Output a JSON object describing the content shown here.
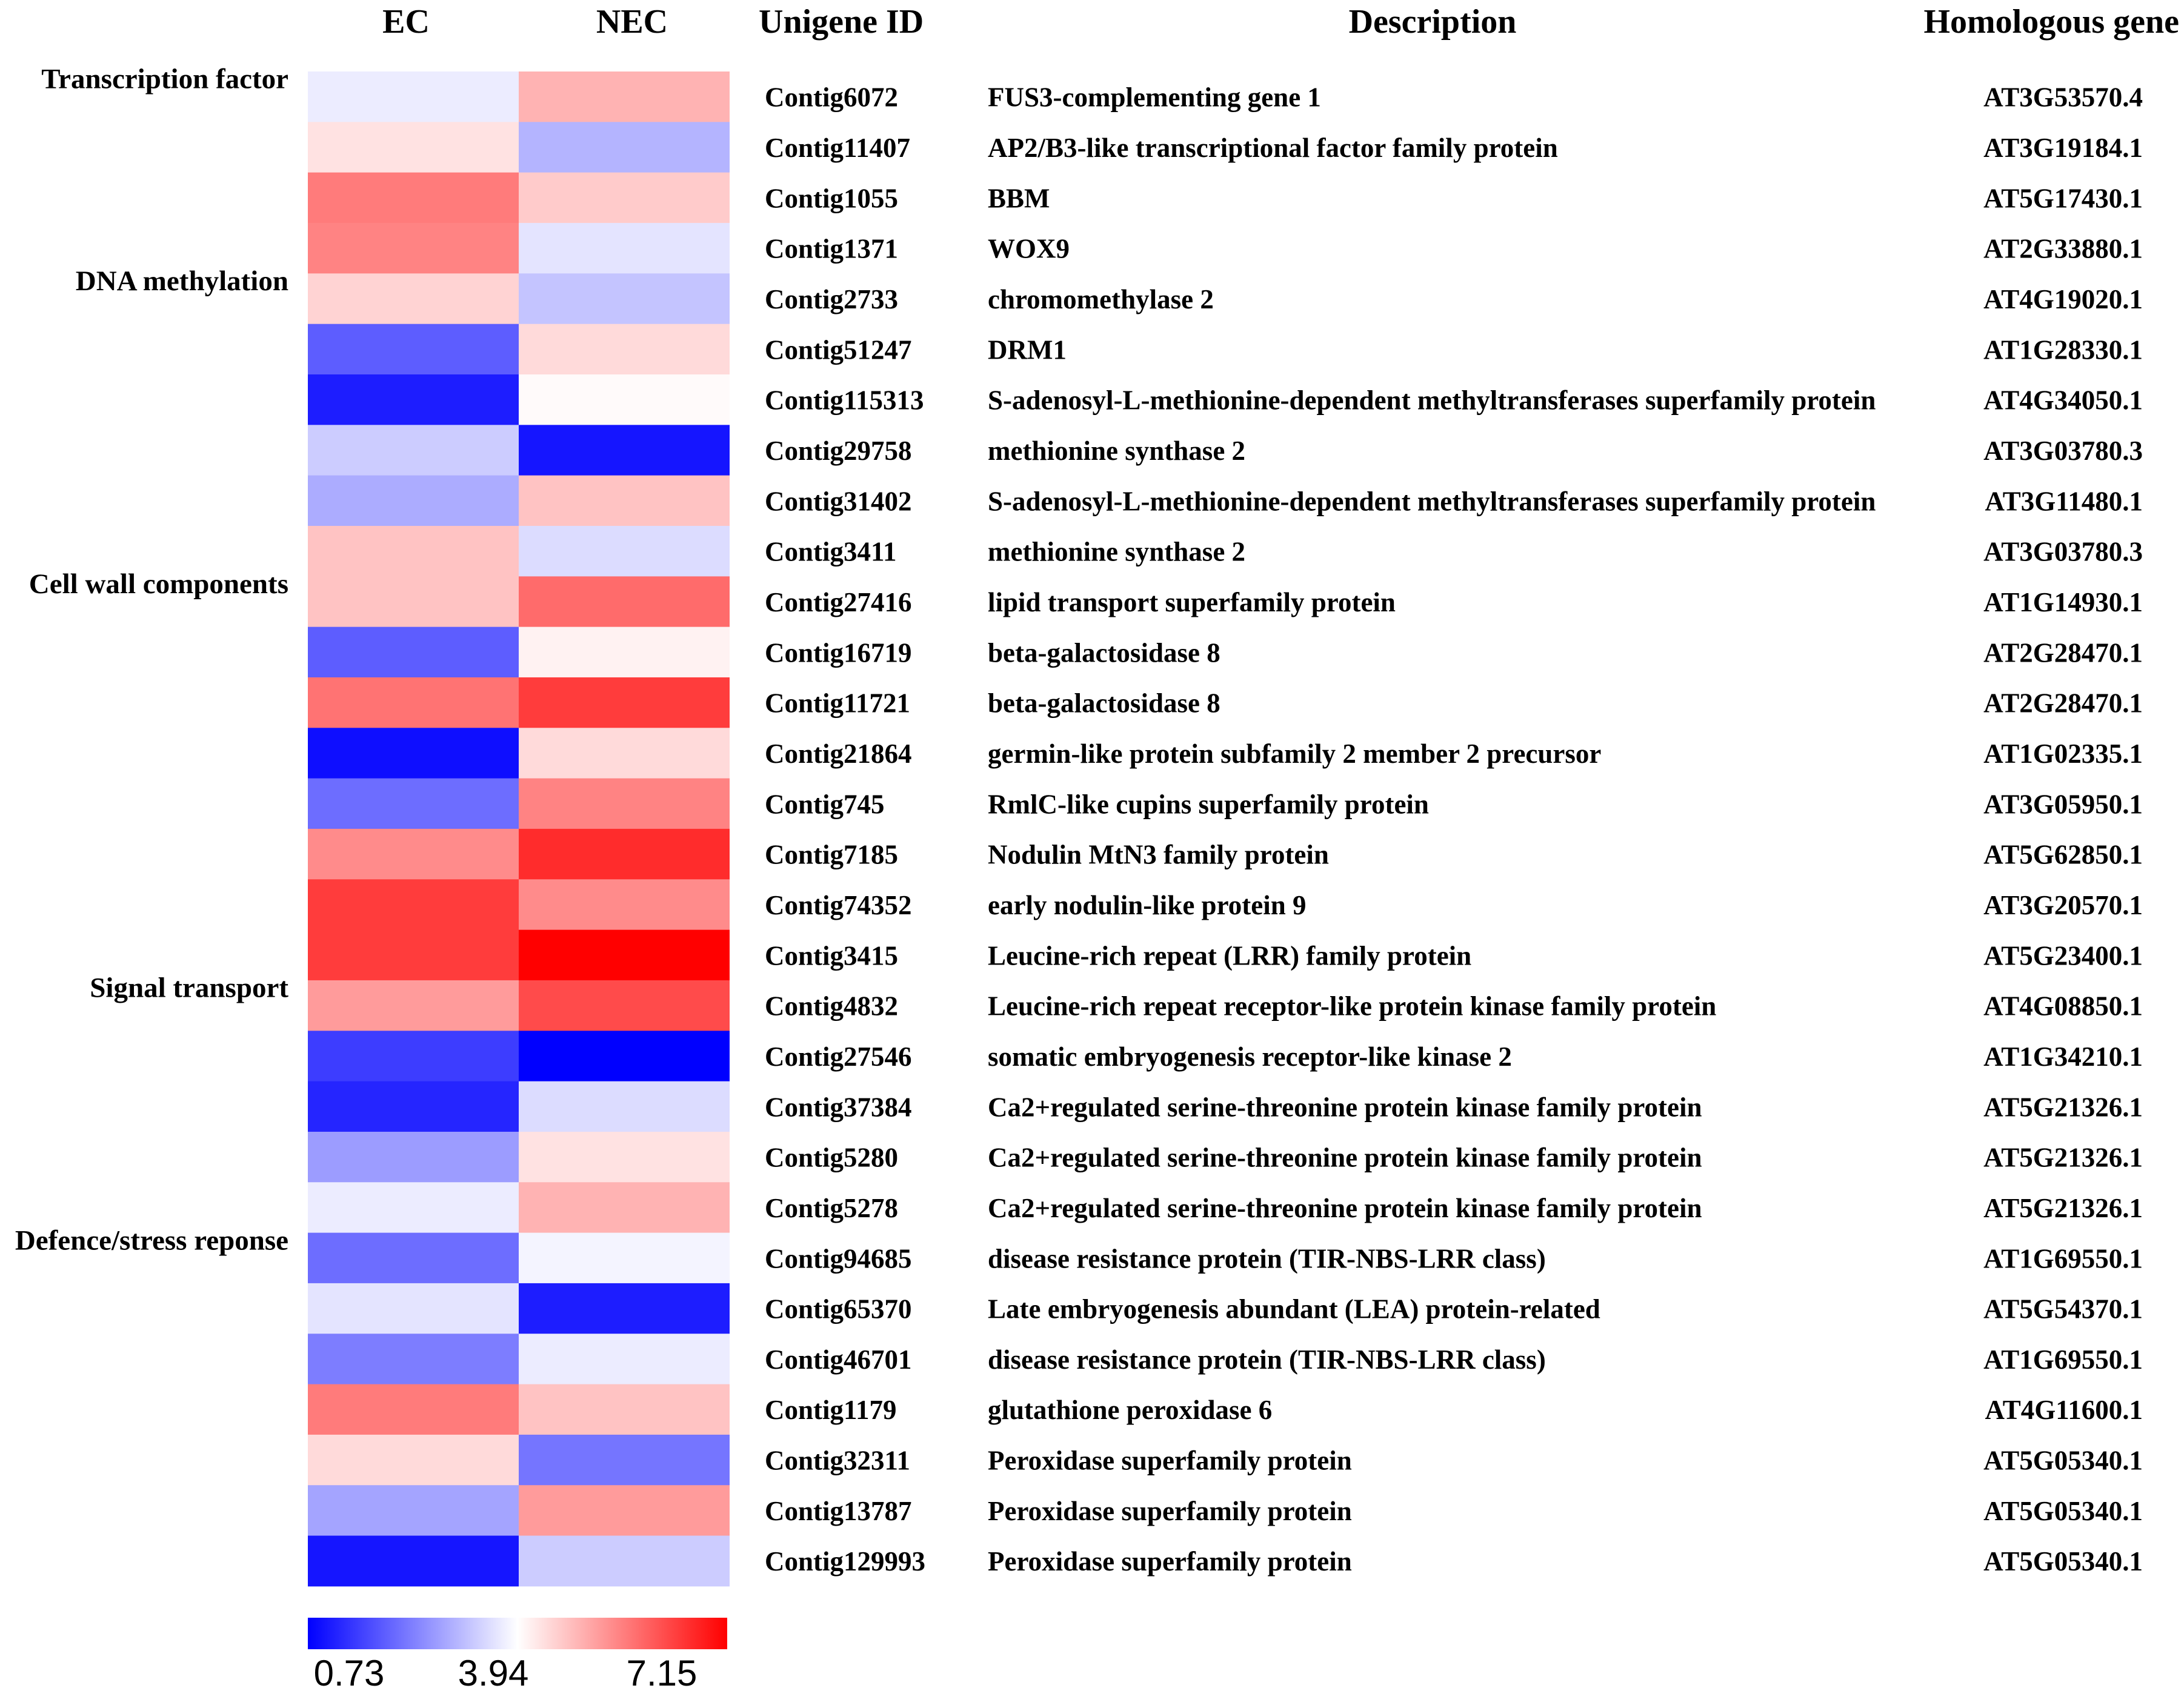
{
  "chart_data": {
    "type": "heatmap",
    "columns": [
      "EC",
      "NEC"
    ],
    "headers": {
      "unigene": "Unigene ID",
      "description": "Description",
      "homologous": "Homologous gene"
    },
    "categories": [
      {
        "label": "Transcription factor",
        "row": 0
      },
      {
        "label": "DNA methylation",
        "row": 4
      },
      {
        "label": "Cell wall components",
        "row": 10
      },
      {
        "label": "Signal transport",
        "row": 18
      },
      {
        "label": "Defence/stress reponse",
        "row": 23
      }
    ],
    "rows": [
      {
        "id": "Contig6072",
        "description": "FUS3-complementing gene 1",
        "gene": "AT3G53570.4",
        "values": [
          3.7,
          4.9
        ]
      },
      {
        "id": "Contig11407",
        "description": "AP2/B3-like transcriptional factor family protein",
        "gene": "AT3G19184.1",
        "values": [
          4.3,
          3.0
        ]
      },
      {
        "id": "Contig1055",
        "description": "BBM",
        "gene": "AT5G17430.1",
        "values": [
          5.6,
          4.6
        ]
      },
      {
        "id": "Contig1371",
        "description": "WOX9",
        "gene": "AT2G33880.1",
        "values": [
          5.5,
          3.6
        ]
      },
      {
        "id": "Contig2733",
        "description": "chromomethylase 2",
        "gene": "AT4G19020.1",
        "values": [
          4.5,
          3.2
        ]
      },
      {
        "id": "Contig51247",
        "description": "DRM1",
        "gene": "AT1G28330.1",
        "values": [
          1.9,
          4.4
        ]
      },
      {
        "id": "Contig115313",
        "description": "S-adenosyl-L-methionine-dependent methyltransferases superfamily protein",
        "gene": "AT4G34050.1",
        "values": [
          1.1,
          4.0
        ]
      },
      {
        "id": "Contig29758",
        "description": "methionine synthase 2",
        "gene": "AT3G03780.3",
        "values": [
          3.3,
          1.0
        ]
      },
      {
        "id": "Contig31402",
        "description": "S-adenosyl-L-methionine-dependent methyltransferases superfamily protein",
        "gene": "AT3G11480.1",
        "values": [
          2.9,
          4.7
        ]
      },
      {
        "id": "Contig3411",
        "description": "methionine synthase 2",
        "gene": "AT3G03780.3",
        "values": [
          4.7,
          3.5
        ]
      },
      {
        "id": "Contig27416",
        "description": "lipid transport superfamily protein",
        "gene": "AT1G14930.1",
        "values": [
          4.7,
          5.8
        ]
      },
      {
        "id": "Contig16719",
        "description": "beta-galactosidase 8",
        "gene": "AT2G28470.1",
        "values": [
          1.9,
          4.1
        ]
      },
      {
        "id": "Contig11721",
        "description": "beta-galactosidase 8",
        "gene": "AT2G28470.1",
        "values": [
          5.7,
          6.4
        ]
      },
      {
        "id": "Contig21864",
        "description": "germin-like protein subfamily 2 member 2 precursor",
        "gene": "AT1G02335.1",
        "values": [
          0.9,
          4.4
        ]
      },
      {
        "id": "Contig745",
        "description": "RmlC-like cupins superfamily protein",
        "gene": "AT3G05950.1",
        "values": [
          2.1,
          5.5
        ]
      },
      {
        "id": "Contig7185",
        "description": "Nodulin MtN3 family protein",
        "gene": "AT5G62850.1",
        "values": [
          5.4,
          6.6
        ]
      },
      {
        "id": "Contig74352",
        "description": "early nodulin-like protein 9",
        "gene": "AT3G20570.1",
        "values": [
          6.4,
          5.4
        ]
      },
      {
        "id": "Contig3415",
        "description": "Leucine-rich repeat (LRR) family protein",
        "gene": "AT5G23400.1",
        "values": [
          6.4,
          7.15
        ]
      },
      {
        "id": "Contig4832",
        "description": "Leucine-rich repeat receptor-like protein kinase family protein",
        "gene": "AT4G08850.1",
        "values": [
          5.2,
          6.2
        ]
      },
      {
        "id": "Contig27546",
        "description": "somatic embryogenesis receptor-like kinase 2",
        "gene": "AT1G34210.1",
        "values": [
          1.5,
          0.73
        ]
      },
      {
        "id": "Contig37384",
        "description": "Ca2+regulated serine-threonine protein kinase family protein",
        "gene": "AT5G21326.1",
        "values": [
          1.2,
          3.5
        ]
      },
      {
        "id": "Contig5280",
        "description": "Ca2+regulated serine-threonine protein kinase family protein",
        "gene": "AT5G21326.1",
        "values": [
          2.7,
          4.3
        ]
      },
      {
        "id": "Contig5278",
        "description": "Ca2+regulated serine-threonine protein kinase family protein",
        "gene": "AT5G21326.1",
        "values": [
          3.7,
          4.9
        ]
      },
      {
        "id": "Contig94685",
        "description": "disease resistance protein (TIR-NBS-LRR class)",
        "gene": "AT1G69550.1",
        "values": [
          2.1,
          3.8
        ]
      },
      {
        "id": "Contig65370",
        "description": "Late embryogenesis abundant (LEA) protein-related",
        "gene": "AT5G54370.1",
        "values": [
          3.6,
          1.1
        ]
      },
      {
        "id": "Contig46701",
        "description": "disease resistance protein (TIR-NBS-LRR class)",
        "gene": "AT1G69550.1",
        "values": [
          2.3,
          3.7
        ]
      },
      {
        "id": "Contig1179",
        "description": "glutathione peroxidase 6",
        "gene": "AT4G11600.1",
        "values": [
          5.6,
          4.7
        ]
      },
      {
        "id": "Contig32311",
        "description": "Peroxidase superfamily protein",
        "gene": "AT5G05340.1",
        "values": [
          4.4,
          2.2
        ]
      },
      {
        "id": "Contig13787",
        "description": "Peroxidase superfamily protein",
        "gene": "AT5G05340.1",
        "values": [
          2.8,
          5.2
        ]
      },
      {
        "id": "Contig129993",
        "description": "Peroxidase superfamily protein",
        "gene": "AT5G05340.1",
        "values": [
          1.0,
          3.3
        ]
      }
    ],
    "colorbar": {
      "min": 0.73,
      "mid": 3.94,
      "max": 7.15,
      "ticks": [
        "0.73",
        "3.94",
        "7.15"
      ]
    },
    "colors": {
      "low": "#0000ff",
      "mid": "#ffffff",
      "high": "#ff0000"
    }
  }
}
